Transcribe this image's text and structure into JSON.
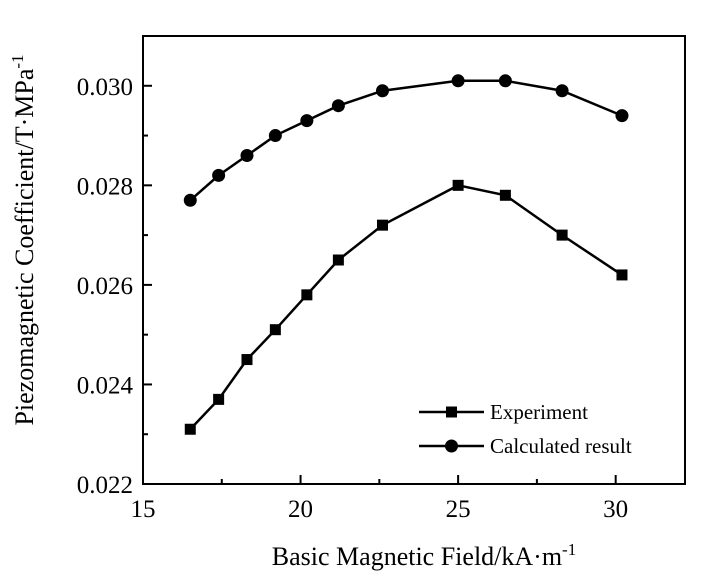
{
  "chart_data": {
    "type": "line",
    "title": "",
    "xlabel": "Basic Magnetic Field/kA·m",
    "xlabel_sup": "-1",
    "ylabel": "Piezomagnetic Coefficient/T·MPa",
    "ylabel_sup": "-1",
    "xlim": [
      15,
      32.2
    ],
    "ylim": [
      0.022,
      0.031
    ],
    "xticks": [
      15,
      20,
      25,
      30
    ],
    "xtick_labels": [
      "15",
      "20",
      "25",
      "30"
    ],
    "yticks": [
      0.022,
      0.024,
      0.026,
      0.028,
      0.03
    ],
    "ytick_labels": [
      "0.022",
      "0.024",
      "0.026",
      "0.028",
      "0.030"
    ],
    "grid": false,
    "legend_position": "bottom-right",
    "series": [
      {
        "name": "Experiment",
        "marker": "square",
        "color": "#000000",
        "x": [
          16.5,
          17.4,
          18.3,
          19.2,
          20.2,
          21.2,
          22.6,
          25.0,
          26.5,
          28.3,
          30.2
        ],
        "y": [
          0.0231,
          0.0237,
          0.0245,
          0.0251,
          0.0258,
          0.0265,
          0.0272,
          0.028,
          0.0278,
          0.027,
          0.0262
        ]
      },
      {
        "name": "Calculated result",
        "marker": "circle",
        "color": "#000000",
        "x": [
          16.5,
          17.4,
          18.3,
          19.2,
          20.2,
          21.2,
          22.6,
          25.0,
          26.5,
          28.3,
          30.2
        ],
        "y": [
          0.0277,
          0.0282,
          0.0286,
          0.029,
          0.0293,
          0.0296,
          0.0299,
          0.0301,
          0.0301,
          0.0299,
          0.0294
        ]
      }
    ]
  }
}
